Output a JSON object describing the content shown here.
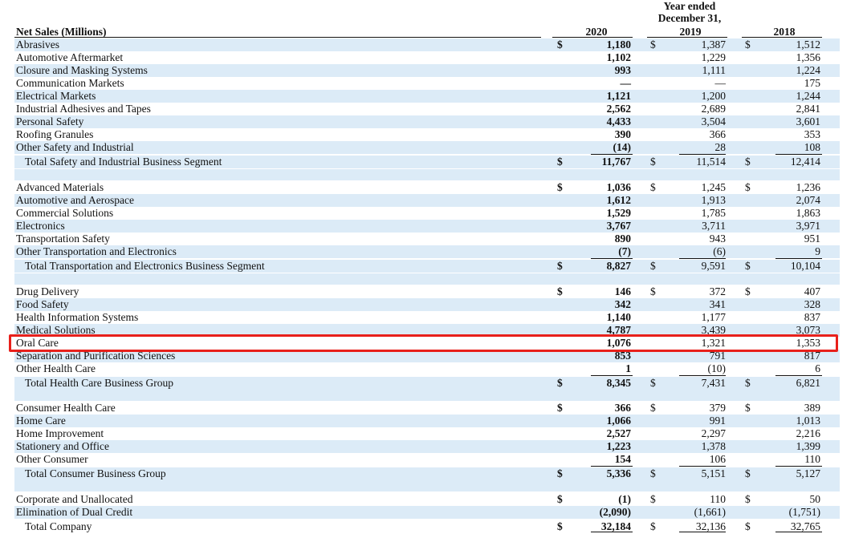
{
  "header": {
    "title": "Net Sales (Millions)",
    "period_line1": "Year ended",
    "period_line2": "December 31,",
    "years": [
      "2020",
      "2019",
      "2018"
    ]
  },
  "highlight_color": "#e8201b",
  "row_shade_color": "#dcebf7",
  "rows": [
    {
      "label": "Abrasives",
      "d1": "$",
      "v2020": "1,180",
      "d2": "$",
      "v2019": "1,387",
      "d3": "$",
      "v2018": "1,512"
    },
    {
      "label": "Automotive Aftermarket",
      "v2020": "1,102",
      "v2019": "1,229",
      "v2018": "1,356"
    },
    {
      "label": "Closure and Masking Systems",
      "v2020": "993",
      "v2019": "1,111",
      "v2018": "1,224"
    },
    {
      "label": "Communication Markets",
      "v2020": "—",
      "v2019": "—",
      "v2018": "175"
    },
    {
      "label": "Electrical Markets",
      "v2020": "1,121",
      "v2019": "1,200",
      "v2018": "1,244"
    },
    {
      "label": "Industrial Adhesives and Tapes",
      "v2020": "2,562",
      "v2019": "2,689",
      "v2018": "2,841"
    },
    {
      "label": "Personal Safety",
      "v2020": "4,433",
      "v2019": "3,504",
      "v2018": "3,601"
    },
    {
      "label": "Roofing Granules",
      "v2020": "390",
      "v2019": "366",
      "v2018": "353"
    },
    {
      "label": "Other Safety and Industrial",
      "v2020": "(14)",
      "v2019": "28",
      "v2018": "108"
    },
    {
      "label": "Total Safety and Industrial Business Segment",
      "d1": "$",
      "v2020": "11,767",
      "d2": "$",
      "v2019": "11,514",
      "d3": "$",
      "v2018": "12,414"
    },
    {
      "label": "Advanced Materials",
      "d1": "$",
      "v2020": "1,036",
      "d2": "$",
      "v2019": "1,245",
      "d3": "$",
      "v2018": "1,236"
    },
    {
      "label": "Automotive and Aerospace",
      "v2020": "1,612",
      "v2019": "1,913",
      "v2018": "2,074"
    },
    {
      "label": "Commercial Solutions",
      "v2020": "1,529",
      "v2019": "1,785",
      "v2018": "1,863"
    },
    {
      "label": "Electronics",
      "v2020": "3,767",
      "v2019": "3,711",
      "v2018": "3,971"
    },
    {
      "label": "Transportation Safety",
      "v2020": "890",
      "v2019": "943",
      "v2018": "951"
    },
    {
      "label": "Other Transportation and Electronics",
      "v2020": "(7)",
      "v2019": "(6)",
      "v2018": "9"
    },
    {
      "label": "Total Transportation and Electronics Business Segment",
      "d1": "$",
      "v2020": "8,827",
      "d2": "$",
      "v2019": "9,591",
      "d3": "$",
      "v2018": "10,104"
    },
    {
      "label": "Drug Delivery",
      "d1": "$",
      "v2020": "146",
      "d2": "$",
      "v2019": "372",
      "d3": "$",
      "v2018": "407"
    },
    {
      "label": "Food Safety",
      "v2020": "342",
      "v2019": "341",
      "v2018": "328"
    },
    {
      "label": "Health Information Systems",
      "v2020": "1,140",
      "v2019": "1,177",
      "v2018": "837"
    },
    {
      "label": "Medical Solutions",
      "v2020": "4,787",
      "v2019": "3,439",
      "v2018": "3,073"
    },
    {
      "label": "Oral Care",
      "v2020": "1,076",
      "v2019": "1,321",
      "v2018": "1,353"
    },
    {
      "label": "Separation and Purification Sciences",
      "v2020": "853",
      "v2019": "791",
      "v2018": "817"
    },
    {
      "label": "Other Health Care",
      "v2020": "1",
      "v2019": "(10)",
      "v2018": "6"
    },
    {
      "label": "Total Health Care Business Group",
      "d1": "$",
      "v2020": "8,345",
      "d2": "$",
      "v2019": "7,431",
      "d3": "$",
      "v2018": "6,821"
    },
    {
      "label": "Consumer Health Care",
      "d1": "$",
      "v2020": "366",
      "d2": "$",
      "v2019": "379",
      "d3": "$",
      "v2018": "389"
    },
    {
      "label": "Home Care",
      "v2020": "1,066",
      "v2019": "991",
      "v2018": "1,013"
    },
    {
      "label": "Home Improvement",
      "v2020": "2,527",
      "v2019": "2,297",
      "v2018": "2,216"
    },
    {
      "label": "Stationery and Office",
      "v2020": "1,223",
      "v2019": "1,378",
      "v2018": "1,399"
    },
    {
      "label": "Other Consumer",
      "v2020": "154",
      "v2019": "106",
      "v2018": "110"
    },
    {
      "label": "Total Consumer Business Group",
      "d1": "$",
      "v2020": "5,336",
      "d2": "$",
      "v2019": "5,151",
      "d3": "$",
      "v2018": "5,127"
    },
    {
      "label": "Corporate and Unallocated",
      "d1": "$",
      "v2020": "(1)",
      "d2": "$",
      "v2019": "110",
      "d3": "$",
      "v2018": "50"
    },
    {
      "label": "Elimination of Dual Credit",
      "v2020": "(2,090)",
      "v2019": "(1,661)",
      "v2018": "(1,751)"
    },
    {
      "label": "Total Company",
      "d1": "$",
      "v2020": "32,184",
      "d2": "$",
      "v2019": "32,136",
      "d3": "$",
      "v2018": "32,765"
    }
  ]
}
